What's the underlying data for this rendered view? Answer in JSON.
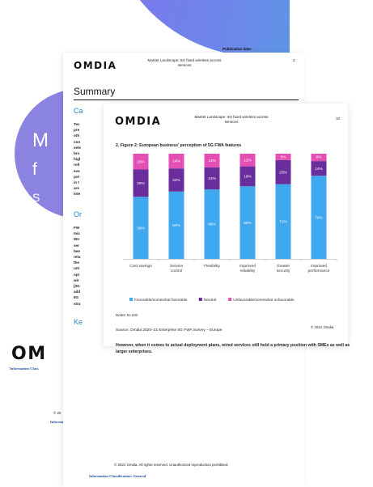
{
  "cover": {
    "publication_date_label": "Publication date:",
    "blob_letters": [
      "M",
      "f",
      "S"
    ]
  },
  "report_page": {
    "logo": "OMDIA",
    "header_title_line1": "Market Landscape: 5G fixed wireless access",
    "header_title_line2": "services",
    "page_number": "2",
    "section_title": "Summary",
    "subhead_1": "Ca",
    "subhead_2": "Or",
    "subhead_3": "Ke",
    "fragments_block1": [
      "Tec",
      "pre",
      "oth",
      "con",
      "sele",
      "bro",
      "higl",
      "roll",
      "eve",
      "pot",
      "in t",
      "are",
      "inte"
    ],
    "fragments_block2": [
      "FW",
      "mic",
      "Wo",
      "ser",
      "bee",
      "rela",
      "the",
      "unt",
      "opt",
      "wir",
      "[3G",
      "add",
      "5G",
      "stra"
    ],
    "copyright": "© 2021 Omdia. All rights reserved. Unauthorized reproduction prohibited.",
    "info_classification": "Information Classification: General"
  },
  "figure_page": {
    "logo": "OMDIA",
    "header_title_line1": "Market Landscape: 5G fixed wireless access",
    "header_title_line2": "services",
    "page_number": "10",
    "figure_title": "2. Figure 2: European business' perception of 5G FWA features",
    "notes": "Notes: N=103",
    "source": "Source: Omdia 2020–21 Enterprise 5G FWA Survey – Europe",
    "copyright": "© 2021 Omdia",
    "paragraph": "However, when it comes to actual deployment plans, wired services still hold a primary position with SMEs as well as larger enterprises."
  },
  "left_strip": {
    "logo_fragment": "OM",
    "info_fragment_1": "Information Class",
    "copyright_fragment": "© 20",
    "info_fragment_2": "Information Classification: General"
  },
  "chart_data": {
    "type": "bar",
    "stacked": true,
    "categories": [
      "Cost savings",
      "Service control",
      "Flexibility",
      "Improved reliability",
      "Greater security",
      "Improved performance"
    ],
    "series": [
      {
        "name": "Favorable/somewhat favorable",
        "color": "#3fa8ee",
        "values": [
          59,
          64,
          66,
          69,
          71,
          79
        ]
      },
      {
        "name": "Neutral",
        "color": "#6a2e9c",
        "values": [
          26,
          22,
          21,
          19,
          23,
          14
        ]
      },
      {
        "name": "Unfavorable/somewhat unfavorable",
        "color": "#e44fb3",
        "values": [
          15,
          14,
          13,
          12,
          6,
          8
        ]
      }
    ],
    "ylim": [
      0,
      100
    ],
    "legend_position": "bottom",
    "grid": false
  }
}
